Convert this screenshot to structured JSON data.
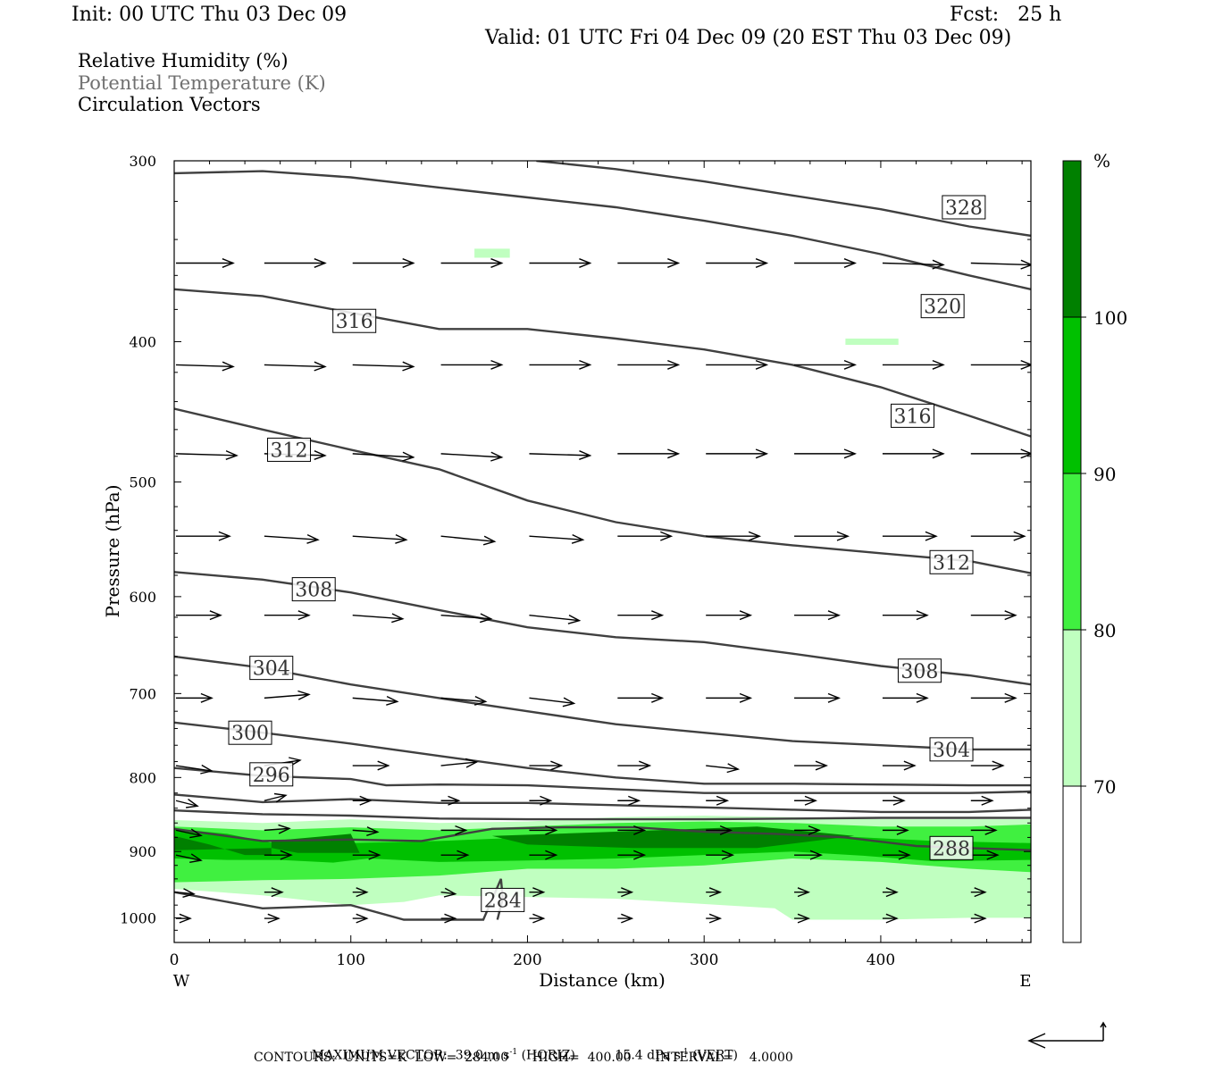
{
  "header": {
    "init": "Init: 00 UTC Thu 03 Dec 09",
    "fcst": "Fcst:   25 h",
    "valid": "Valid: 01 UTC Fri 04 Dec 09 (20 EST Thu 03 Dec 09)"
  },
  "legend": {
    "line1": "Relative Humidity (%)",
    "line2": "Potential Temperature (K)",
    "line3": "Circulation Vectors"
  },
  "footer": {
    "max_vector_label": "MAXIMUM VECTOR:",
    "horiz_value": "39.0",
    "horiz_units": "m s",
    "horiz_exp": "-1",
    "horiz_tag": "(HORIZ)",
    "vert_value": "15.4",
    "vert_units": "dPa s",
    "vert_exp": "-1",
    "vert_tag": "(VERT)",
    "contours": "CONTOURS:  UNITS=K  LOW=  284.00      HIGH=  400.00      INTERVAL=    4.0000"
  },
  "colors": {
    "rh70": "#c0ffc0",
    "rh80": "#40f040",
    "rh90": "#00c000",
    "rh100": "#008000",
    "theta": "#404040",
    "vector": "#000000"
  },
  "chart_data": {
    "type": "contour",
    "xlabel": "Distance (km)",
    "ylabel": "Pressure (hPa)",
    "xlim": [
      0,
      485
    ],
    "ylim": [
      1040,
      300
    ],
    "yscale": "log",
    "x_ticks": [
      0,
      100,
      200,
      300,
      400
    ],
    "y_ticks": [
      300,
      400,
      500,
      600,
      700,
      800,
      900,
      1000
    ],
    "x_end_labels": {
      "left": "W",
      "right": "E"
    },
    "colorbar": {
      "unit": "%",
      "levels": [
        70,
        80,
        90,
        100
      ],
      "colors": [
        "#ffffff",
        "#c0ffc0",
        "#40f040",
        "#00c000",
        "#008000"
      ]
    },
    "theta_contours": [
      {
        "label": "328",
        "x": [
          205,
          250,
          300,
          350,
          400,
          450,
          485
        ],
        "p": [
          300,
          304,
          310,
          317,
          324,
          333,
          338
        ],
        "label_x": 447,
        "label_p": 323
      },
      {
        "label": "320",
        "x": [
          0,
          50,
          100,
          150,
          200,
          250,
          300,
          350,
          400,
          450,
          485
        ],
        "p": [
          306,
          305,
          308,
          313,
          318,
          323,
          330,
          338,
          348,
          360,
          368
        ],
        "label_x": 435,
        "label_p": 378
      },
      {
        "label": "316",
        "x": [
          0,
          50,
          100,
          150,
          200,
          250,
          300,
          350,
          400,
          450,
          485
        ],
        "p": [
          368,
          372,
          382,
          392,
          392,
          398,
          405,
          415,
          430,
          450,
          465
        ],
        "label_x": 102,
        "label_p": 387
      },
      {
        "label": "316",
        "x": [],
        "p": [],
        "label_x": 418,
        "label_p": 450
      },
      {
        "label": "312",
        "x": [
          0,
          50,
          100,
          150,
          200,
          250,
          300,
          350,
          400,
          450,
          485
        ],
        "p": [
          445,
          460,
          475,
          490,
          515,
          533,
          545,
          553,
          560,
          567,
          578
        ],
        "label_x": 65,
        "label_p": 475
      },
      {
        "label": "312",
        "x": [],
        "p": [],
        "label_x": 440,
        "label_p": 568
      },
      {
        "label": "308",
        "x": [
          0,
          50,
          100,
          150,
          200,
          250,
          300,
          350,
          400,
          450,
          485
        ],
        "p": [
          577,
          584,
          596,
          613,
          630,
          640,
          645,
          657,
          670,
          680,
          690
        ],
        "label_x": 79,
        "label_p": 593
      },
      {
        "label": "308",
        "x": [],
        "p": [],
        "label_x": 422,
        "label_p": 675
      },
      {
        "label": "304",
        "x": [
          0,
          50,
          100,
          150,
          200,
          250,
          300,
          350,
          400,
          450,
          485
        ],
        "p": [
          660,
          672,
          690,
          705,
          720,
          735,
          745,
          755,
          760,
          765,
          765
        ],
        "label_x": 55,
        "label_p": 672
      },
      {
        "label": "304",
        "x": [],
        "p": [],
        "label_x": 440,
        "label_p": 765
      },
      {
        "label": "300",
        "x": [
          0,
          50,
          100,
          150,
          200,
          250,
          300,
          350,
          400,
          450,
          485
        ],
        "p": [
          733,
          745,
          758,
          773,
          788,
          800,
          808,
          808,
          809,
          810,
          810
        ],
        "label_x": 43,
        "label_p": 745
      },
      {
        "label": "296",
        "x": [
          0,
          50,
          100,
          120,
          150,
          200,
          250,
          300,
          350,
          400,
          450,
          485
        ],
        "p": [
          788,
          798,
          802,
          810,
          809,
          810,
          815,
          820,
          820,
          820,
          820,
          818
        ],
        "label_x": 55,
        "label_p": 796
      },
      {
        "label": "",
        "x": [
          0,
          50,
          100,
          150,
          200,
          250,
          300,
          350,
          400,
          450,
          485
        ],
        "p": [
          822,
          832,
          828,
          833,
          833,
          836,
          839,
          842,
          845,
          845,
          842
        ],
        "label_x": null,
        "label_p": null
      },
      {
        "label": "",
        "x": [
          0,
          50,
          100,
          150,
          200,
          250,
          300,
          350,
          400,
          450,
          485
        ],
        "p": [
          843,
          848,
          850,
          854,
          855,
          855,
          855,
          854,
          853,
          853,
          853
        ],
        "label_x": null,
        "label_p": null
      },
      {
        "label": "288",
        "x": [
          0,
          50,
          100,
          140,
          180,
          220,
          260,
          300,
          340,
          380,
          420,
          450,
          485
        ],
        "p": [
          868,
          885,
          883,
          885,
          868,
          866,
          866,
          872,
          875,
          880,
          892,
          895,
          898
        ],
        "label_x": 440,
        "label_p": 895
      },
      {
        "label": "284",
        "x": [
          0,
          50,
          100,
          130,
          160,
          175,
          185,
          186,
          183
        ],
        "p": [
          960,
          985,
          980,
          1003,
          1003,
          1003,
          940,
          970,
          1003
        ],
        "label_x": 186,
        "label_p": 972
      }
    ],
    "rh_regions": [
      {
        "level": "70-80",
        "x": [
          0,
          50,
          100,
          150,
          200,
          250,
          300,
          350,
          400,
          450,
          485,
          485,
          450,
          400,
          350,
          340,
          250,
          150,
          130,
          100,
          50,
          0
        ],
        "p": [
          856,
          860,
          855,
          860,
          858,
          852,
          850,
          852,
          855,
          855,
          855,
          1000,
          1000,
          1003,
          1003,
          985,
          970,
          965,
          975,
          980,
          965,
          955
        ]
      },
      {
        "level": "80-90",
        "x": [
          0,
          50,
          100,
          150,
          200,
          250,
          300,
          350,
          400,
          450,
          485,
          485,
          450,
          400,
          350,
          300,
          250,
          200,
          150,
          100,
          50,
          0
        ],
        "p": [
          865,
          870,
          866,
          870,
          865,
          860,
          858,
          860,
          865,
          865,
          862,
          930,
          925,
          915,
          910,
          920,
          925,
          925,
          935,
          940,
          942,
          945
        ]
      },
      {
        "level": "90-100",
        "x": [
          0,
          30,
          60,
          100,
          150,
          200,
          250,
          300,
          350,
          390,
          430,
          485,
          485,
          430,
          390,
          350,
          300,
          250,
          200,
          150,
          110,
          90,
          60,
          30,
          0
        ],
        "p": [
          868,
          875,
          890,
          888,
          885,
          880,
          874,
          872,
          875,
          880,
          885,
          888,
          912,
          914,
          906,
          900,
          905,
          910,
          913,
          915,
          910,
          916,
          912,
          912,
          910
        ]
      },
      {
        "level": "100+",
        "x": [
          0,
          20,
          40,
          55,
          55,
          0
        ],
        "p": [
          878,
          890,
          905,
          905,
          895,
          898
        ]
      },
      {
        "level": "100+",
        "x": [
          55,
          100,
          105,
          70,
          55
        ],
        "p": [
          885,
          875,
          902,
          902,
          895
        ]
      },
      {
        "level": "100+",
        "x": [
          180,
          250,
          330,
          385,
          330,
          260,
          200,
          180
        ],
        "p": [
          878,
          872,
          865,
          878,
          895,
          895,
          890,
          878
        ]
      },
      {
        "level": "70-80",
        "x": [
          170,
          190,
          190,
          170
        ],
        "p": [
          345,
          345,
          350,
          350
        ]
      },
      {
        "level": "70-80",
        "x": [
          380,
          410,
          410,
          380
        ],
        "p": [
          398,
          398,
          402,
          402
        ]
      }
    ],
    "vectors": {
      "x_rows": [
        0,
        50,
        100,
        150,
        200,
        250,
        300,
        350,
        400,
        450
      ],
      "rows": [
        {
          "p": 353,
          "u": [
            32,
            34,
            34,
            34,
            34,
            34,
            34,
            34,
            34,
            34
          ],
          "w": [
            0,
            0,
            0,
            0,
            0,
            0,
            0,
            0,
            1,
            1
          ]
        },
        {
          "p": 415,
          "u": [
            32,
            34,
            34,
            34,
            34,
            34,
            34,
            34,
            34,
            34
          ],
          "w": [
            1,
            1,
            1,
            0,
            0,
            0,
            0,
            0,
            0,
            0
          ]
        },
        {
          "p": 478,
          "u": [
            34,
            34,
            34,
            34,
            34,
            34,
            34,
            34,
            34,
            34
          ],
          "w": [
            1,
            1,
            2,
            2,
            1,
            0,
            0,
            0,
            0,
            0
          ]
        },
        {
          "p": 545,
          "u": [
            30,
            30,
            30,
            30,
            30,
            30,
            30,
            30,
            30,
            30
          ],
          "w": [
            0,
            2,
            2,
            3,
            2,
            0,
            0,
            0,
            0,
            0
          ]
        },
        {
          "p": 618,
          "u": [
            25,
            25,
            28,
            28,
            28,
            25,
            25,
            25,
            25,
            25
          ],
          "w": [
            0,
            0,
            2,
            2,
            3,
            0,
            0,
            0,
            0,
            0
          ]
        },
        {
          "p": 705,
          "u": [
            20,
            25,
            25,
            25,
            25,
            25,
            25,
            25,
            25,
            25
          ],
          "w": [
            0,
            -2,
            2,
            2,
            3,
            0,
            0,
            0,
            0,
            0
          ]
        },
        {
          "p": 785,
          "u": [
            20,
            20,
            20,
            20,
            18,
            18,
            18,
            18,
            18,
            18
          ],
          "w": [
            3,
            -3,
            0,
            -2,
            0,
            0,
            2,
            0,
            0,
            0
          ]
        },
        {
          "p": 830,
          "u": [
            12,
            12,
            10,
            10,
            12,
            12,
            12,
            12,
            12,
            12
          ],
          "w": [
            3,
            -3,
            0,
            0,
            0,
            0,
            0,
            0,
            0,
            0
          ]
        },
        {
          "p": 870,
          "u": [
            14,
            14,
            14,
            14,
            15,
            15,
            14,
            14,
            14,
            14
          ],
          "w": [
            3,
            -1,
            1,
            0,
            0,
            0,
            0,
            0,
            0,
            0
          ]
        },
        {
          "p": 905,
          "u": [
            14,
            15,
            15,
            15,
            15,
            15,
            15,
            15,
            15,
            15
          ],
          "w": [
            3,
            0,
            0,
            0,
            0,
            0,
            0,
            0,
            0,
            0
          ]
        },
        {
          "p": 960,
          "u": [
            10,
            10,
            8,
            8,
            8,
            8,
            8,
            8,
            8,
            8
          ],
          "w": [
            1,
            0,
            0,
            1,
            0,
            0,
            0,
            0,
            0,
            0
          ]
        },
        {
          "p": 1001,
          "u": [
            8,
            8,
            8,
            8,
            8,
            8,
            8,
            8,
            8,
            8
          ],
          "w": [
            0,
            0,
            0,
            0,
            0,
            0,
            0,
            0,
            0,
            0
          ]
        }
      ]
    }
  }
}
